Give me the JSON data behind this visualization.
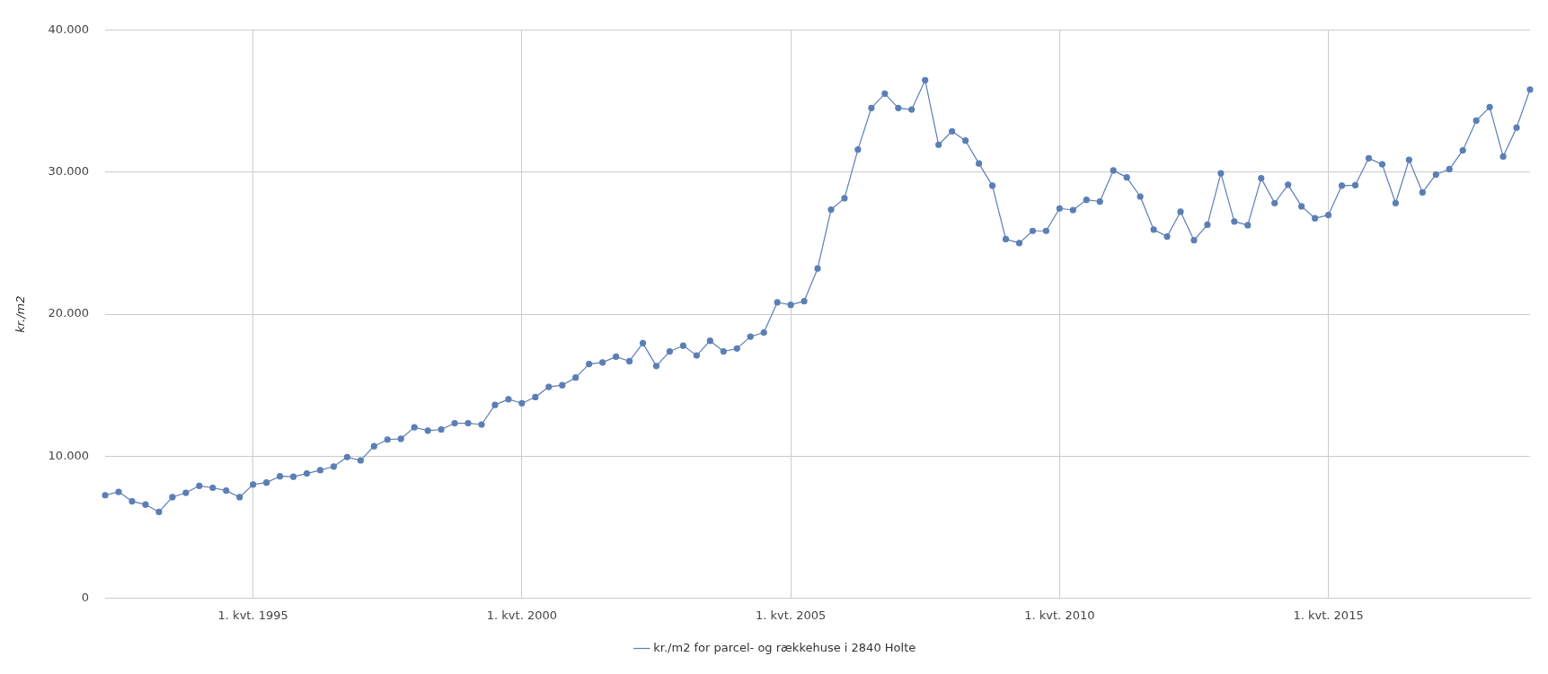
{
  "chart_data": {
    "type": "line",
    "ylabel": "kr./m2",
    "categories": [
      null,
      null,
      null,
      null,
      null,
      null,
      null,
      null,
      null,
      null,
      null,
      "1. kvt. 1995",
      null,
      null,
      null,
      null,
      null,
      null,
      null,
      null,
      null,
      null,
      null,
      null,
      null,
      null,
      null,
      null,
      null,
      null,
      null,
      "1. kvt. 2000",
      null,
      null,
      null,
      null,
      null,
      null,
      null,
      null,
      null,
      null,
      null,
      null,
      null,
      null,
      null,
      null,
      null,
      null,
      null,
      "1. kvt. 2005",
      null,
      null,
      null,
      null,
      null,
      null,
      null,
      null,
      null,
      null,
      null,
      null,
      null,
      null,
      null,
      null,
      null,
      null,
      null,
      "1. kvt. 2010",
      null,
      null,
      null,
      null,
      null,
      null,
      null,
      null,
      null,
      null,
      null,
      null,
      null,
      null,
      null,
      null,
      null,
      null,
      null,
      "1. kvt. 2015",
      null,
      null,
      null,
      null,
      null,
      null,
      null,
      null,
      null,
      null,
      null,
      null,
      null,
      null,
      null
    ],
    "series": [
      {
        "name": "kr./m2 for parcel- og rækkehuse i 2840 Holte",
        "color": "#5b7fb5",
        "values": [
          7250,
          7480,
          6820,
          6590,
          6070,
          7110,
          7420,
          7910,
          7770,
          7570,
          7110,
          8000,
          8140,
          8580,
          8550,
          8780,
          9010,
          9270,
          9930,
          9700,
          10700,
          11170,
          11220,
          12030,
          11800,
          11880,
          12320,
          12320,
          12230,
          13610,
          14010,
          13730,
          14160,
          14880,
          15000,
          15540,
          16490,
          16600,
          17010,
          16690,
          17960,
          16350,
          17380,
          17780,
          17090,
          18130,
          17380,
          17580,
          18420,
          18710,
          20830,
          20660,
          20920,
          23220,
          27370,
          28170,
          31600,
          34530,
          35540,
          34530,
          34420,
          36490,
          31940,
          32890,
          32230,
          30620,
          29060,
          25290,
          25010,
          25870,
          25870,
          27450,
          27340,
          28060,
          27940,
          30130,
          29640,
          28290,
          25960,
          25470,
          27220,
          25210,
          26300,
          29930,
          26530,
          26270,
          29580,
          27830,
          29120,
          27600,
          26760,
          26990,
          29060,
          29090,
          30990,
          30560,
          27830,
          30880,
          28580,
          29840,
          30220,
          31540,
          33640,
          34590,
          31110,
          33150,
          35830
        ]
      }
    ],
    "ylim": [
      0,
      40000
    ],
    "yticks": [
      0,
      {
        "value": 10000,
        "label": "10.000"
      },
      {
        "value": 20000,
        "label": "20.000"
      },
      {
        "value": 30000,
        "label": "30.000"
      },
      {
        "value": 40000,
        "label": "40.000"
      }
    ],
    "grid": true,
    "legend": "bottom",
    "marker": "circle",
    "line_style": "solid"
  }
}
